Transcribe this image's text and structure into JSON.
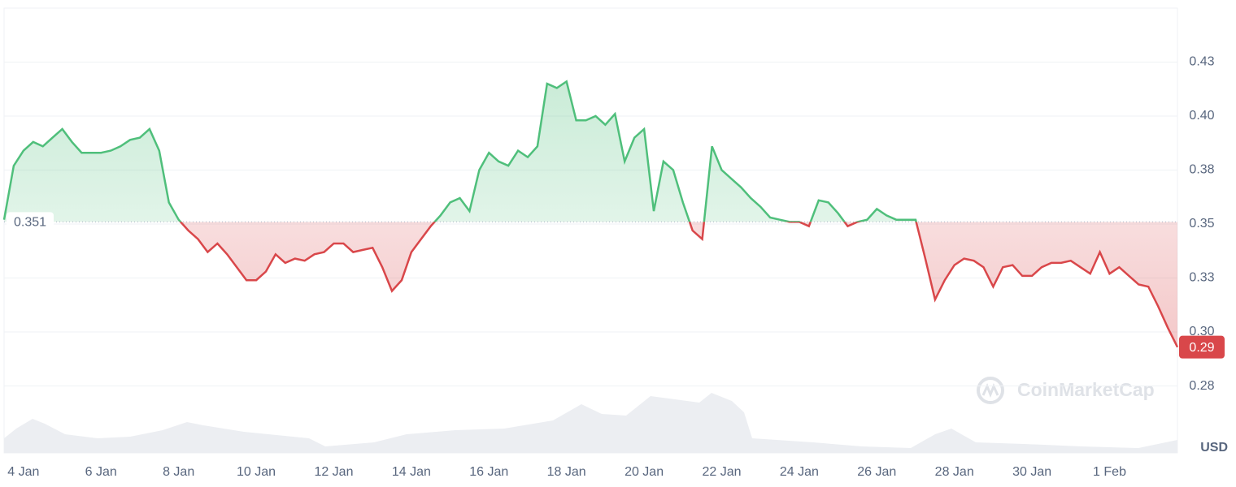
{
  "chart_data": {
    "type": "line",
    "x": [
      null,
      null,
      "4 Jan",
      null,
      null,
      null,
      null,
      null,
      null,
      null,
      "6 Jan",
      null,
      null,
      null,
      null,
      null,
      null,
      null,
      "8 Jan",
      null,
      null,
      null,
      null,
      null,
      null,
      null,
      "10 Jan",
      null,
      null,
      null,
      null,
      null,
      null,
      null,
      "12 Jan",
      null,
      null,
      null,
      null,
      null,
      null,
      null,
      "14 Jan",
      null,
      null,
      null,
      null,
      null,
      null,
      null,
      "16 Jan",
      null,
      null,
      null,
      null,
      null,
      null,
      null,
      "18 Jan",
      null,
      null,
      null,
      null,
      null,
      null,
      null,
      "20 Jan",
      null,
      null,
      null,
      null,
      null,
      null,
      null,
      "22 Jan",
      null,
      null,
      null,
      null,
      null,
      null,
      null,
      "24 Jan",
      null,
      null,
      null,
      null,
      null,
      null,
      null,
      "26 Jan",
      null,
      null,
      null,
      null,
      null,
      null,
      null,
      "28 Jan",
      null,
      null,
      null,
      null,
      null,
      null,
      null,
      "30 Jan",
      null,
      null,
      null,
      null,
      null,
      null,
      null,
      "1 Feb",
      null,
      null,
      null,
      null,
      null,
      null,
      null
    ],
    "series": [
      {
        "values": [
          0.352,
          0.377,
          0.384,
          0.388,
          0.386,
          0.39,
          0.394,
          0.388,
          0.383,
          0.383,
          0.383,
          0.384,
          0.386,
          0.389,
          0.39,
          0.394,
          0.384,
          0.36,
          0.352,
          0.347,
          0.343,
          0.337,
          0.341,
          0.336,
          0.33,
          0.324,
          0.324,
          0.328,
          0.336,
          0.332,
          0.334,
          0.333,
          0.336,
          0.337,
          0.341,
          0.341,
          0.337,
          0.338,
          0.339,
          0.33,
          0.319,
          0.324,
          0.337,
          0.343,
          0.349,
          0.354,
          0.36,
          0.362,
          0.356,
          0.375,
          0.383,
          0.379,
          0.377,
          0.384,
          0.381,
          0.386,
          0.415,
          0.413,
          0.416,
          0.398,
          0.398,
          0.4,
          0.396,
          0.401,
          0.379,
          0.39,
          0.394,
          0.356,
          0.379,
          0.375,
          0.36,
          0.347,
          0.343,
          0.386,
          0.375,
          0.371,
          0.367,
          0.362,
          0.358,
          0.353,
          0.352,
          0.351,
          0.351,
          0.349,
          0.361,
          0.36,
          0.355,
          0.349,
          0.351,
          0.352,
          0.357,
          0.354,
          0.352,
          0.352,
          0.352,
          0.334,
          0.315,
          0.324,
          0.331,
          0.334,
          0.333,
          0.33,
          0.321,
          0.33,
          0.331,
          0.326,
          0.326,
          0.33,
          0.332,
          0.332,
          0.333,
          0.33,
          0.327,
          0.337,
          0.327,
          0.33,
          0.326,
          0.322,
          0.321,
          0.312,
          0.302,
          0.293
        ]
      }
    ],
    "up_color": "#4fbf7b",
    "down_color": "#d9474a",
    "baseline": 0.351,
    "current_price": {
      "value": 0.293,
      "label": "0.29"
    },
    "ylim": [
      0.244,
      0.45
    ],
    "yticks": [
      {
        "value": 0.275,
        "label": "0.28"
      },
      {
        "value": 0.3,
        "label": "0.30"
      },
      {
        "value": 0.325,
        "label": "0.33"
      },
      0.35,
      {
        "value": 0.375,
        "label": "0.38"
      },
      {
        "value": 0.4,
        "label": "0.40"
      },
      {
        "value": 0.425,
        "label": "0.43"
      }
    ],
    "grid": true,
    "currency": "USD",
    "watermark": "CoinMarketCap"
  }
}
